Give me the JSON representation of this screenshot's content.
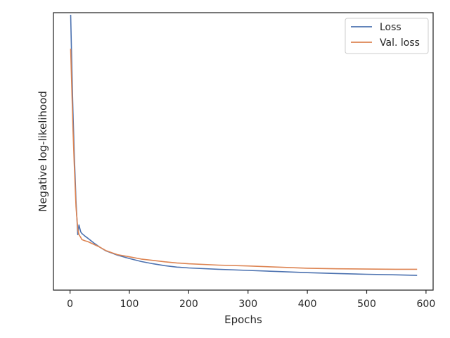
{
  "chart_data": {
    "type": "line",
    "xlabel": "Epochs",
    "ylabel": "Negative log-likelihood",
    "xlim": [
      -28,
      612
    ],
    "ylim": [
      0,
      1
    ],
    "xticks": [
      0,
      100,
      200,
      300,
      400,
      500,
      600
    ],
    "y_tick_labels_shown": false,
    "grid": false,
    "legend_position": "top-right",
    "series": [
      {
        "name": "Loss",
        "color": "#4c72b0",
        "x": [
          1,
          3,
          5,
          7,
          10,
          13,
          15,
          18,
          20,
          25,
          30,
          40,
          50,
          60,
          70,
          80,
          100,
          120,
          140,
          160,
          180,
          200,
          250,
          300,
          350,
          400,
          450,
          500,
          550,
          585
        ],
        "y": [
          0.9925,
          0.8,
          0.64,
          0.5,
          0.32,
          0.2,
          0.235,
          0.21,
          0.204,
          0.195,
          0.187,
          0.17,
          0.155,
          0.142,
          0.134,
          0.126,
          0.114,
          0.103,
          0.095,
          0.088,
          0.083,
          0.08,
          0.075,
          0.071,
          0.067,
          0.063,
          0.06,
          0.057,
          0.055,
          0.053
        ]
      },
      {
        "name": "Val. loss",
        "color": "#dd8452",
        "x": [
          1,
          3,
          5,
          7,
          10,
          13,
          15,
          18,
          20,
          25,
          30,
          40,
          50,
          60,
          70,
          80,
          100,
          120,
          140,
          160,
          180,
          200,
          250,
          300,
          350,
          400,
          450,
          500,
          550,
          585
        ],
        "y": [
          0.87,
          0.72,
          0.58,
          0.46,
          0.3,
          0.22,
          0.2,
          0.19,
          0.182,
          0.178,
          0.175,
          0.165,
          0.155,
          0.143,
          0.135,
          0.128,
          0.12,
          0.112,
          0.107,
          0.102,
          0.098,
          0.095,
          0.09,
          0.087,
          0.083,
          0.079,
          0.077,
          0.076,
          0.075,
          0.075
        ]
      }
    ]
  }
}
